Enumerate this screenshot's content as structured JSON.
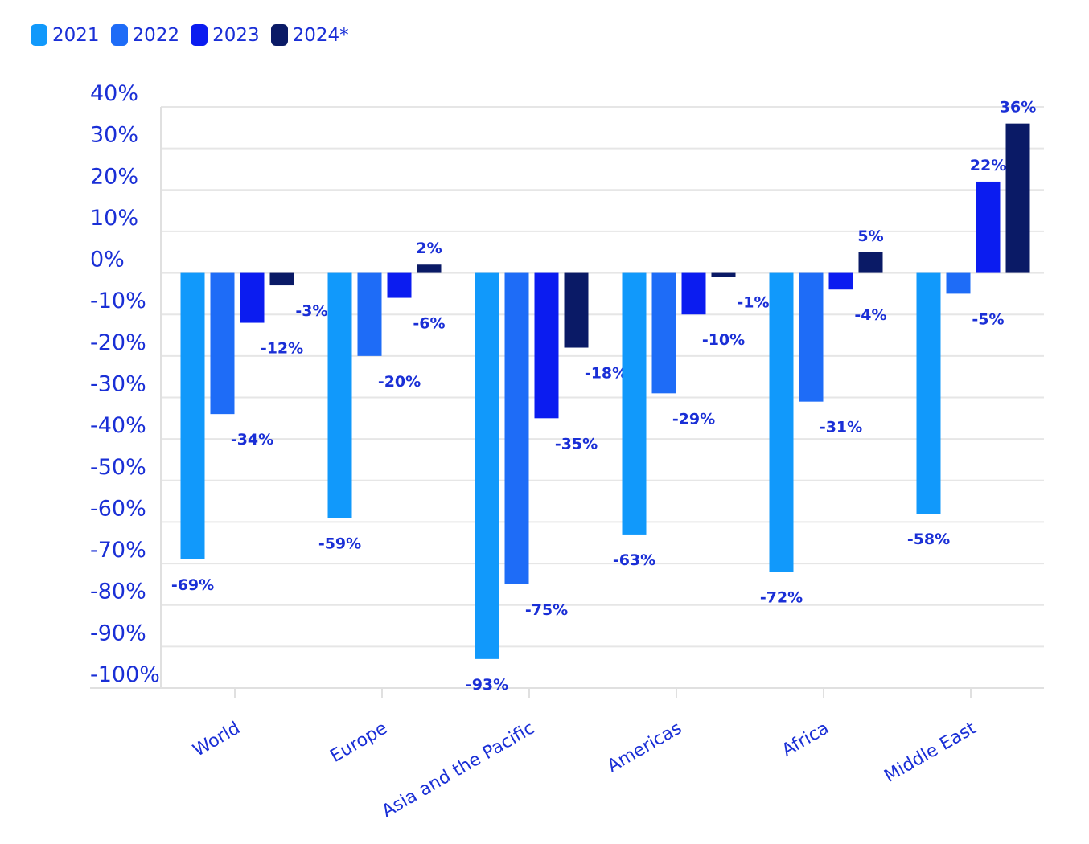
{
  "colors": {
    "text": "#1a2fd6",
    "grid": "#e6e6e6",
    "axis": "#e0e0e0"
  },
  "legend": [
    {
      "label": "2021",
      "color": "#1199fb"
    },
    {
      "label": "2022",
      "color": "#1e6cf7"
    },
    {
      "label": "2023",
      "color": "#0b1cf0"
    },
    {
      "label": "2024*",
      "color": "#0a1a66"
    }
  ],
  "chart_data": {
    "type": "bar",
    "title": "",
    "xlabel": "",
    "ylabel": "",
    "categories": [
      "World",
      "Europe",
      "Asia and the Pacific",
      "Americas",
      "Africa",
      "Middle East"
    ],
    "series": [
      {
        "name": "2021",
        "values": [
          -69,
          -59,
          -93,
          -63,
          -72,
          -58
        ]
      },
      {
        "name": "2022",
        "values": [
          -34,
          -20,
          -75,
          -29,
          -31,
          -5
        ]
      },
      {
        "name": "2023",
        "values": [
          -12,
          -6,
          -35,
          -10,
          -4,
          22
        ]
      },
      {
        "name": "2024*",
        "values": [
          -3,
          2,
          -18,
          -1,
          5,
          36
        ]
      }
    ],
    "ylim": [
      -100,
      40
    ],
    "yticks": [
      40,
      30,
      20,
      10,
      0,
      -10,
      -20,
      -30,
      -40,
      -50,
      -60,
      -70,
      -80,
      -90,
      -100
    ],
    "ytick_labels": [
      "40%",
      "30%",
      "20%",
      "10%",
      "0%",
      "-10%",
      "-20%",
      "-30%",
      "-40%",
      "-50%",
      "-60%",
      "-70%",
      "-80%",
      "-90%",
      "-100%"
    ],
    "data_labels": [
      [
        "-69%",
        "-34%",
        "-12%",
        "-3%"
      ],
      [
        "-59%",
        "-20%",
        "-6%",
        "2%"
      ],
      [
        "-93%",
        "-75%",
        "-35%",
        "-18%"
      ],
      [
        "-63%",
        "-29%",
        "-10%",
        "-1%"
      ],
      [
        "-72%",
        "-31%",
        "-4%",
        "5%"
      ],
      [
        "-58%",
        "-5%",
        "22%",
        "36%"
      ]
    ],
    "grid": true,
    "legend_position": "top-left"
  }
}
